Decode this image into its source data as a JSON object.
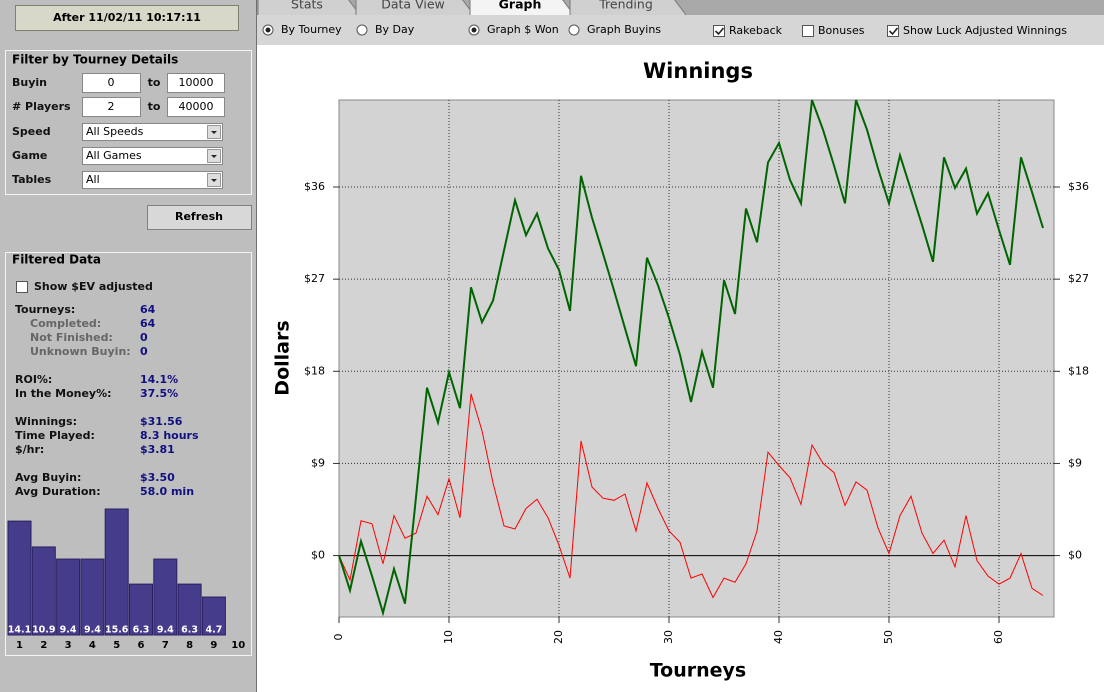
{
  "sidebar": {
    "date_button": "After 11/02/11 10:17:11",
    "filter": {
      "title": "Filter by Tourney Details",
      "ranges": [
        {
          "label": "Buyin",
          "min": "0",
          "sep": "to",
          "max": "10000"
        },
        {
          "label": "# Players",
          "min": "2",
          "sep": "to",
          "max": "40000"
        }
      ],
      "selects": [
        {
          "label": "Speed",
          "value": "All Speeds"
        },
        {
          "label": "Game",
          "value": "All Games"
        },
        {
          "label": "Tables",
          "value": "All"
        }
      ],
      "refresh": "Refresh"
    },
    "filtered": {
      "title": "Filtered Data",
      "show_ev": {
        "label": "Show $EV adjusted",
        "checked": false
      },
      "groups": [
        [
          {
            "label": "Tourneys:",
            "value": "64",
            "sub": [
              {
                "label": "Completed:",
                "value": "64"
              },
              {
                "label": "Not Finished:",
                "value": "0"
              },
              {
                "label": "Unknown Buyin:",
                "value": "0"
              }
            ]
          }
        ],
        [
          {
            "label": "ROI%:",
            "value": "14.1%"
          },
          {
            "label": "In the Money%:",
            "value": "37.5%"
          }
        ],
        [
          {
            "label": "Winnings:",
            "value": "$31.56"
          },
          {
            "label": "Time Played:",
            "value": "8.3 hours"
          },
          {
            "label": "$/hr:",
            "value": "$3.81"
          }
        ],
        [
          {
            "label": "Avg Buyin:",
            "value": "$3.50"
          },
          {
            "label": "Avg Duration:",
            "value": "58.0 min"
          }
        ]
      ]
    }
  },
  "histogram": {
    "type": "bar",
    "categories": [
      "1",
      "2",
      "3",
      "4",
      "5",
      "6",
      "7",
      "8",
      "9",
      "10"
    ],
    "values": [
      14.1,
      10.9,
      9.4,
      9.4,
      15.6,
      6.3,
      9.4,
      6.3,
      4.7,
      null
    ],
    "color": "#463c8c"
  },
  "tabs": {
    "items": [
      "Stats",
      "Data View",
      "Graph",
      "Trending"
    ],
    "active": 2
  },
  "toolbar": {
    "radios": [
      [
        {
          "label": "By Tourney",
          "checked": true
        },
        {
          "label": "By Day",
          "checked": false
        }
      ],
      [
        {
          "label": "Graph $ Won",
          "checked": true
        },
        {
          "label": "Graph Buyins",
          "checked": false
        }
      ]
    ],
    "checkboxes": [
      {
        "label": "Rakeback",
        "checked": true
      },
      {
        "label": "Bonuses",
        "checked": false
      },
      {
        "label": "Show Luck Adjusted Winnings",
        "checked": true
      }
    ]
  },
  "chart_data": {
    "type": "line",
    "title": "Winnings",
    "x_label": "Tourneys",
    "y_label": "Dollars",
    "x": [
      0,
      1,
      2,
      3,
      4,
      5,
      6,
      7,
      8,
      9,
      10,
      11,
      12,
      13,
      14,
      15,
      16,
      17,
      18,
      19,
      20,
      21,
      22,
      23,
      24,
      25,
      26,
      27,
      28,
      29,
      30,
      31,
      32,
      33,
      34,
      35,
      36,
      37,
      38,
      39,
      40,
      41,
      42,
      43,
      44,
      45,
      46,
      47,
      48,
      49,
      50,
      51,
      52,
      53,
      54,
      55,
      56,
      57,
      58,
      59,
      60,
      61,
      62,
      63,
      64
    ],
    "series": [
      {
        "color": "#006400",
        "values": [
          0,
          -3.4,
          1.4,
          -2,
          -5.6,
          -1.3,
          -4.7,
          5.7,
          16.4,
          13,
          17.9,
          14.4,
          26.2,
          22.8,
          24.9,
          29.8,
          34.7,
          31.3,
          33.4,
          30,
          27.9,
          23.9,
          37.1,
          33,
          29.5,
          25.9,
          22.2,
          18.5,
          29.1,
          26.4,
          23.2,
          19.6,
          15,
          19.9,
          16.4,
          26.9,
          23.6,
          33.9,
          30.6,
          38.4,
          40.3,
          36.7,
          34.4,
          44.5,
          41.6,
          38.1,
          34.4,
          44.5,
          41.6,
          37.8,
          34.4,
          39.1,
          35.7,
          32.3,
          28.7,
          38.9,
          35.9,
          37.8,
          33.4,
          35.4,
          31.8,
          28.4,
          38.9,
          35.5,
          32
        ]
      },
      {
        "color": "#ff0000",
        "values": [
          0,
          -2.4,
          3.4,
          3.1,
          -0.8,
          3.9,
          1.7,
          2.2,
          5.8,
          4,
          7.5,
          3.7,
          15.8,
          12.2,
          7.1,
          2.9,
          2.6,
          4.6,
          5.5,
          3.7,
          1,
          -2.2,
          11.2,
          6.7,
          5.6,
          5.4,
          6,
          2.4,
          7.1,
          4.6,
          2.4,
          1.3,
          -2.2,
          -1.8,
          -4.1,
          -2.2,
          -2.6,
          -0.8,
          2.4,
          10.1,
          8.8,
          7.6,
          5,
          10.8,
          9,
          8.1,
          4.9,
          7.2,
          6.4,
          2.7,
          0.2,
          3.9,
          5.8,
          2.2,
          0.2,
          1.5,
          -1.1,
          3.9,
          -0.5,
          -2,
          -2.8,
          -2.2,
          0.2,
          -3.2,
          -3.9
        ]
      }
    ],
    "xlim": [
      0,
      65
    ],
    "ylim": [
      -6,
      44.5
    ],
    "xticks": [
      0,
      10,
      20,
      30,
      40,
      50,
      60
    ],
    "yticks": [
      {
        "value": 0,
        "label": "$0"
      },
      {
        "value": 9,
        "label": "$9"
      },
      {
        "value": 18,
        "label": "$18"
      },
      {
        "value": 27,
        "label": "$27"
      },
      {
        "value": 36,
        "label": "$36"
      }
    ],
    "grid": true
  }
}
